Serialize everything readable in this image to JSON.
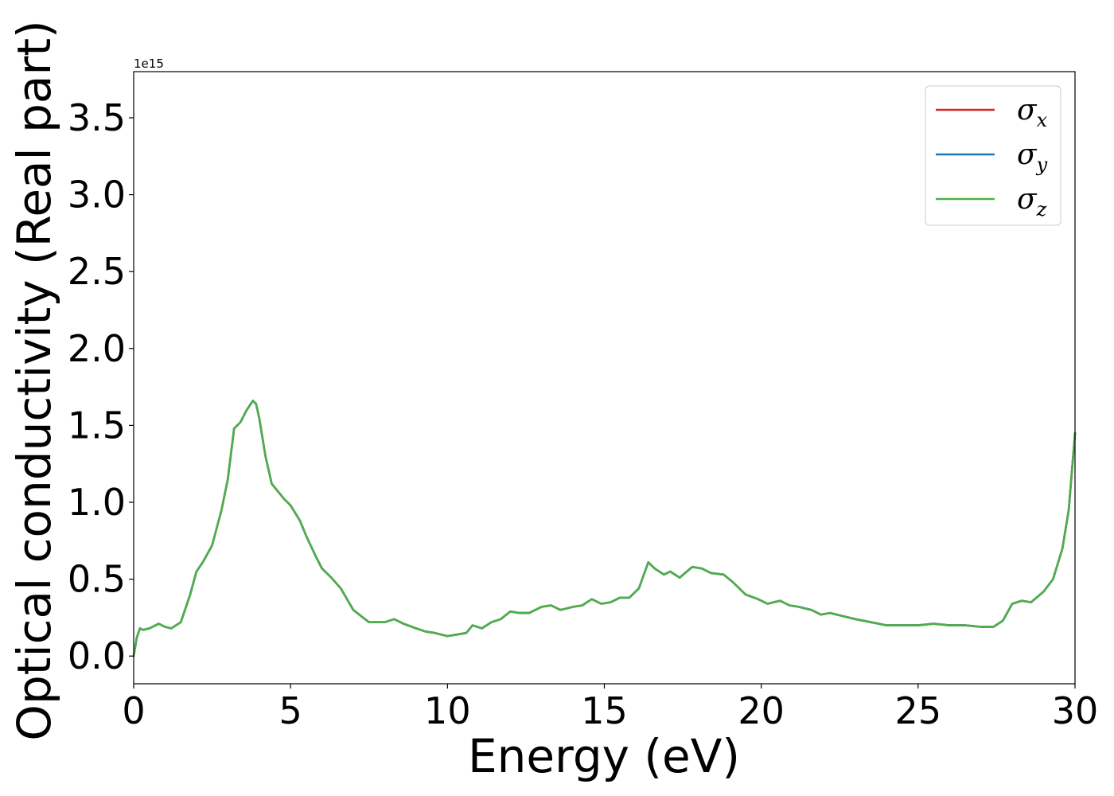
{
  "chart_data": {
    "type": "line",
    "title": "",
    "xlabel": "Energy (eV)",
    "ylabel": "Optical conductivity (Real part)",
    "y_offset_label": "1e15",
    "xlim": [
      0,
      30
    ],
    "ylim": [
      -0.18,
      3.8
    ],
    "x_ticks": [
      0,
      5,
      10,
      15,
      20,
      25,
      30
    ],
    "x_tick_labels": [
      "0",
      "5",
      "10",
      "15",
      "20",
      "25",
      "30"
    ],
    "y_ticks": [
      0.0,
      0.5,
      1.0,
      1.5,
      2.0,
      2.5,
      3.0,
      3.5
    ],
    "y_tick_labels": [
      "0.0",
      "0.5",
      "1.0",
      "1.5",
      "2.0",
      "2.5",
      "3.0",
      "3.5"
    ],
    "grid": false,
    "legend_position": "top-right",
    "x": [
      0,
      0.1,
      0.2,
      0.3,
      0.5,
      0.8,
      1.0,
      1.2,
      1.5,
      1.8,
      2.0,
      2.2,
      2.5,
      2.8,
      3.0,
      3.2,
      3.4,
      3.6,
      3.8,
      3.9,
      4.0,
      4.2,
      4.4,
      4.6,
      4.8,
      5.0,
      5.3,
      5.5,
      5.8,
      6.0,
      6.3,
      6.6,
      7.0,
      7.5,
      8.0,
      8.3,
      8.6,
      9.0,
      9.3,
      9.6,
      10.0,
      10.3,
      10.6,
      10.8,
      11.1,
      11.4,
      11.7,
      12.0,
      12.3,
      12.6,
      13.0,
      13.3,
      13.6,
      14.0,
      14.3,
      14.6,
      14.9,
      15.2,
      15.5,
      15.8,
      16.1,
      16.4,
      16.6,
      16.9,
      17.1,
      17.4,
      17.8,
      18.1,
      18.4,
      18.8,
      19.1,
      19.5,
      19.9,
      20.2,
      20.6,
      20.9,
      21.2,
      21.6,
      21.9,
      22.2,
      22.6,
      23.0,
      23.5,
      24.0,
      24.5,
      25.0,
      25.5,
      26.0,
      26.5,
      27.0,
      27.4,
      27.7,
      28.0,
      28.3,
      28.6,
      29.0,
      29.3,
      29.6,
      29.8,
      30.0
    ],
    "series": [
      {
        "name": "σx",
        "color": "#d62728",
        "values": [
          0.0,
          0.12,
          0.18,
          0.17,
          0.18,
          0.21,
          0.19,
          0.18,
          0.22,
          0.4,
          0.55,
          0.61,
          0.72,
          0.95,
          1.15,
          1.48,
          1.52,
          1.6,
          1.66,
          1.64,
          1.55,
          1.3,
          1.12,
          1.07,
          1.02,
          0.98,
          0.88,
          0.78,
          0.65,
          0.57,
          0.51,
          0.44,
          0.3,
          0.22,
          0.22,
          0.24,
          0.21,
          0.18,
          0.16,
          0.15,
          0.13,
          0.14,
          0.15,
          0.2,
          0.18,
          0.22,
          0.24,
          0.29,
          0.28,
          0.28,
          0.32,
          0.33,
          0.3,
          0.32,
          0.33,
          0.37,
          0.34,
          0.35,
          0.38,
          0.38,
          0.44,
          0.61,
          0.57,
          0.53,
          0.55,
          0.51,
          0.58,
          0.57,
          0.54,
          0.53,
          0.48,
          0.4,
          0.37,
          0.34,
          0.36,
          0.33,
          0.32,
          0.3,
          0.27,
          0.28,
          0.26,
          0.24,
          0.22,
          0.2,
          0.2,
          0.2,
          0.21,
          0.2,
          0.2,
          0.19,
          0.19,
          0.23,
          0.34,
          0.36,
          0.35,
          0.42,
          0.5,
          0.7,
          0.95,
          1.45
        ]
      },
      {
        "name": "σy",
        "color": "#1f77b4",
        "values": [
          0.0,
          0.12,
          0.18,
          0.17,
          0.18,
          0.21,
          0.19,
          0.18,
          0.22,
          0.4,
          0.55,
          0.61,
          0.72,
          0.95,
          1.15,
          1.48,
          1.52,
          1.6,
          1.66,
          1.64,
          1.55,
          1.3,
          1.12,
          1.07,
          1.02,
          0.98,
          0.88,
          0.78,
          0.65,
          0.57,
          0.51,
          0.44,
          0.3,
          0.22,
          0.22,
          0.24,
          0.21,
          0.18,
          0.16,
          0.15,
          0.13,
          0.14,
          0.15,
          0.2,
          0.18,
          0.22,
          0.24,
          0.29,
          0.28,
          0.28,
          0.32,
          0.33,
          0.3,
          0.32,
          0.33,
          0.37,
          0.34,
          0.35,
          0.38,
          0.38,
          0.44,
          0.61,
          0.57,
          0.53,
          0.55,
          0.51,
          0.58,
          0.57,
          0.54,
          0.53,
          0.48,
          0.4,
          0.37,
          0.34,
          0.36,
          0.33,
          0.32,
          0.3,
          0.27,
          0.28,
          0.26,
          0.24,
          0.22,
          0.2,
          0.2,
          0.2,
          0.21,
          0.2,
          0.2,
          0.19,
          0.19,
          0.23,
          0.34,
          0.36,
          0.35,
          0.42,
          0.5,
          0.7,
          0.95,
          1.45
        ]
      },
      {
        "name": "σz",
        "color": "#4daf4a",
        "values": [
          0.0,
          0.12,
          0.18,
          0.17,
          0.18,
          0.21,
          0.19,
          0.18,
          0.22,
          0.4,
          0.55,
          0.61,
          0.72,
          0.95,
          1.15,
          1.48,
          1.52,
          1.6,
          1.66,
          1.64,
          1.55,
          1.3,
          1.12,
          1.07,
          1.02,
          0.98,
          0.88,
          0.78,
          0.65,
          0.57,
          0.51,
          0.44,
          0.3,
          0.22,
          0.22,
          0.24,
          0.21,
          0.18,
          0.16,
          0.15,
          0.13,
          0.14,
          0.15,
          0.2,
          0.18,
          0.22,
          0.24,
          0.29,
          0.28,
          0.28,
          0.32,
          0.33,
          0.3,
          0.32,
          0.33,
          0.37,
          0.34,
          0.35,
          0.38,
          0.38,
          0.44,
          0.61,
          0.57,
          0.53,
          0.55,
          0.51,
          0.58,
          0.57,
          0.54,
          0.53,
          0.48,
          0.4,
          0.37,
          0.34,
          0.36,
          0.33,
          0.32,
          0.3,
          0.27,
          0.28,
          0.26,
          0.24,
          0.22,
          0.2,
          0.2,
          0.2,
          0.21,
          0.2,
          0.2,
          0.19,
          0.19,
          0.23,
          0.34,
          0.36,
          0.35,
          0.42,
          0.5,
          0.7,
          0.95,
          1.45
        ]
      }
    ],
    "legend": [
      {
        "symbol": "σ",
        "sub": "x",
        "color": "#d62728"
      },
      {
        "symbol": "σ",
        "sub": "y",
        "color": "#1f77b4"
      },
      {
        "symbol": "σ",
        "sub": "z",
        "color": "#4daf4a"
      }
    ]
  }
}
